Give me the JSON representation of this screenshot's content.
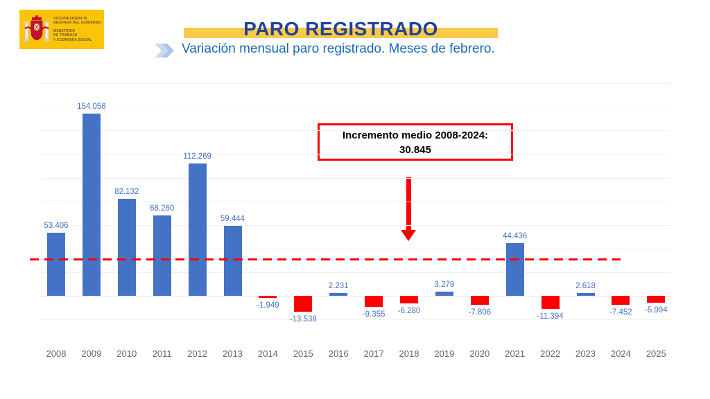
{
  "logo": {
    "bg_color": "#FCC408",
    "text_color": "#66582A",
    "lines": [
      "VICEPRESIDENCIA",
      "SEGUNDA DEL GOBIERNO",
      "MINISTERIO",
      "DE TRABAJO",
      "Y ECONOMÍA SOCIAL"
    ]
  },
  "header": {
    "title": "PARO REGISTRADO",
    "subtitle": "Variación mensual paro registrado. Meses de febrero.",
    "title_color": "#21409A",
    "band_color": "#F9C94A",
    "subtitle_color": "#1A6AB5",
    "chevron_color_light": "#CBD9EE",
    "chevron_color_dark": "#A9C4E6"
  },
  "chart_data": {
    "type": "bar",
    "title": "Variación mensual paro registrado. Meses de febrero.",
    "categories": [
      "2008",
      "2009",
      "2010",
      "2011",
      "2012",
      "2013",
      "2014",
      "2015",
      "2016",
      "2017",
      "2018",
      "2019",
      "2020",
      "2021",
      "2022",
      "2023",
      "2024",
      "2025"
    ],
    "values": [
      53406,
      154058,
      82132,
      68260,
      112269,
      59444,
      -1949,
      -13538,
      2231,
      -9355,
      -6280,
      3279,
      -7806,
      44436,
      -11394,
      2618,
      -7452,
      -5994
    ],
    "labels": [
      "53.406",
      "154.058",
      "82.132",
      "68.260",
      "112.269",
      "59.444",
      "-1.949",
      "-13.538",
      "2.231",
      "-9.355",
      "-6.280",
      "3.279",
      "-7.806",
      "44.436",
      "-11.394",
      "2.618",
      "-7.452",
      "-5.994"
    ],
    "xlabel": "",
    "ylabel": "",
    "ylim": [
      -20000,
      180000
    ],
    "grid": "horizontal, step 20000, very faint",
    "legend": "none",
    "colors": {
      "positive": "#4472C4",
      "negative": "#FF0000",
      "value_label": "#4472C4",
      "axis_label": "#5A6577",
      "grid": "#F2F2F2",
      "baseline": "#DCE3F0"
    },
    "average_line": {
      "value": 30845,
      "label": "30.845",
      "color": "#FF0000",
      "style": "dashed"
    },
    "annotation": {
      "line1": "Incremento medio 2008-2024:",
      "line2": "30.845",
      "border_color": "#FF0000",
      "arrow_color": "#FF0000"
    }
  }
}
